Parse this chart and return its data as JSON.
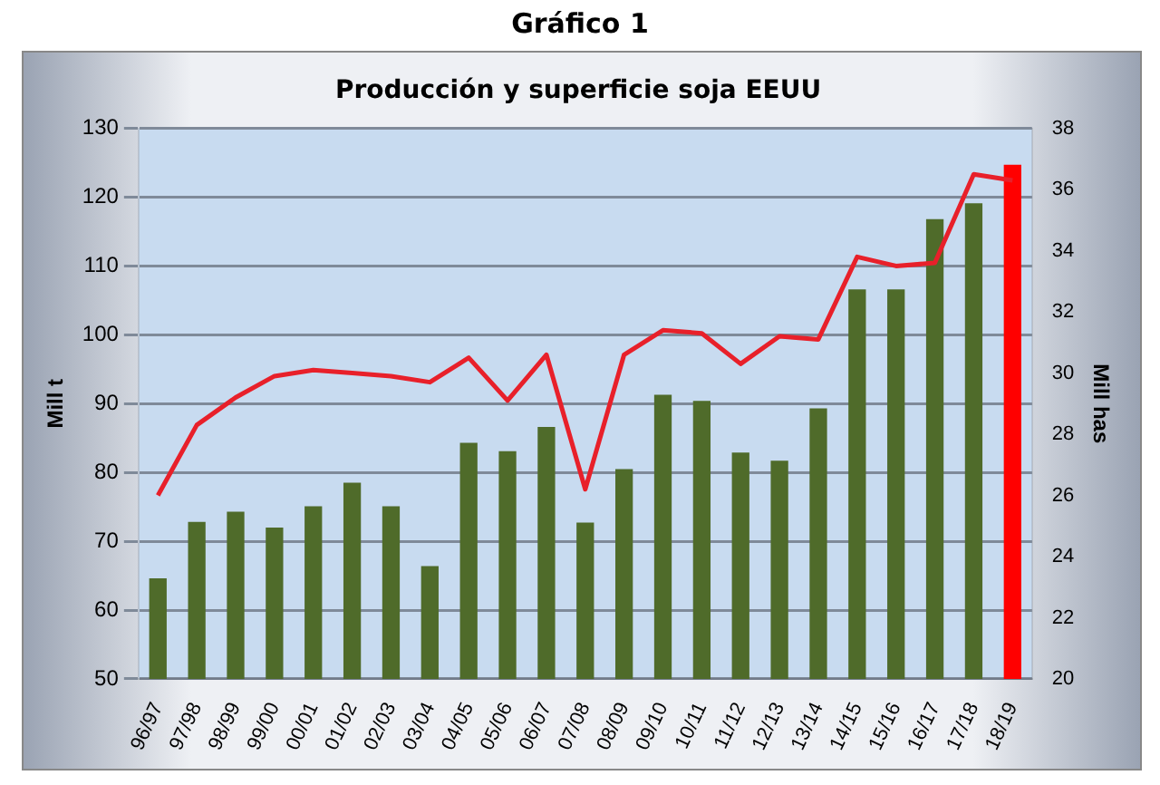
{
  "chart_data": {
    "type": "bar",
    "title": "Gráfico 1",
    "subtitle": "Producción y superficie soja EEUU",
    "ylabel": "Mill t",
    "y2label": "Mill has",
    "categories": [
      "96/97",
      "97/98",
      "98/99",
      "99/00",
      "00/01",
      "01/02",
      "02/03",
      "03/04",
      "04/05",
      "05/06",
      "06/07",
      "07/08",
      "08/09",
      "09/10",
      "10/11",
      "11/12",
      "12/13",
      "13/14",
      "14/15",
      "15/16",
      "16/17",
      "17/18",
      "18/19"
    ],
    "series": [
      {
        "colors": [
          "#4f6b2a",
          "#4f6b2a",
          "#4f6b2a",
          "#4f6b2a",
          "#4f6b2a",
          "#4f6b2a",
          "#4f6b2a",
          "#4f6b2a",
          "#4f6b2a",
          "#4f6b2a",
          "#4f6b2a",
          "#4f6b2a",
          "#4f6b2a",
          "#4f6b2a",
          "#4f6b2a",
          "#4f6b2a",
          "#4f6b2a",
          "#4f6b2a",
          "#4f6b2a",
          "#4f6b2a",
          "#4f6b2a",
          "#4f6b2a",
          "#ff0000"
        ],
        "values": [
          64.6,
          72.8,
          74.3,
          72,
          75.1,
          78.5,
          75.1,
          66.4,
          84.3,
          83.1,
          86.6,
          72.7,
          80.5,
          91.3,
          90.4,
          82.9,
          81.7,
          89.3,
          106.6,
          106.6,
          116.8,
          119.1,
          124.7
        ]
      },
      {
        "type": "line",
        "axis": "y2",
        "color": "#e8202a",
        "values": [
          26.0,
          28.3,
          29.2,
          29.9,
          30.1,
          30.0,
          29.9,
          29.7,
          30.5,
          29.1,
          30.6,
          26.2,
          30.6,
          31.4,
          31.3,
          30.3,
          31.2,
          31.1,
          33.8,
          33.5,
          33.6,
          36.5,
          36.3
        ]
      }
    ],
    "ylim": [
      50,
      130
    ],
    "yticks": [
      50,
      60,
      70,
      80,
      90,
      100,
      110,
      120,
      130
    ],
    "y2lim": [
      20,
      38
    ],
    "y2ticks": [
      20,
      22,
      24,
      26,
      28,
      30,
      32,
      34,
      36,
      38
    ],
    "grid": "y",
    "legend": false,
    "marker": "none",
    "line_style": "solid"
  }
}
